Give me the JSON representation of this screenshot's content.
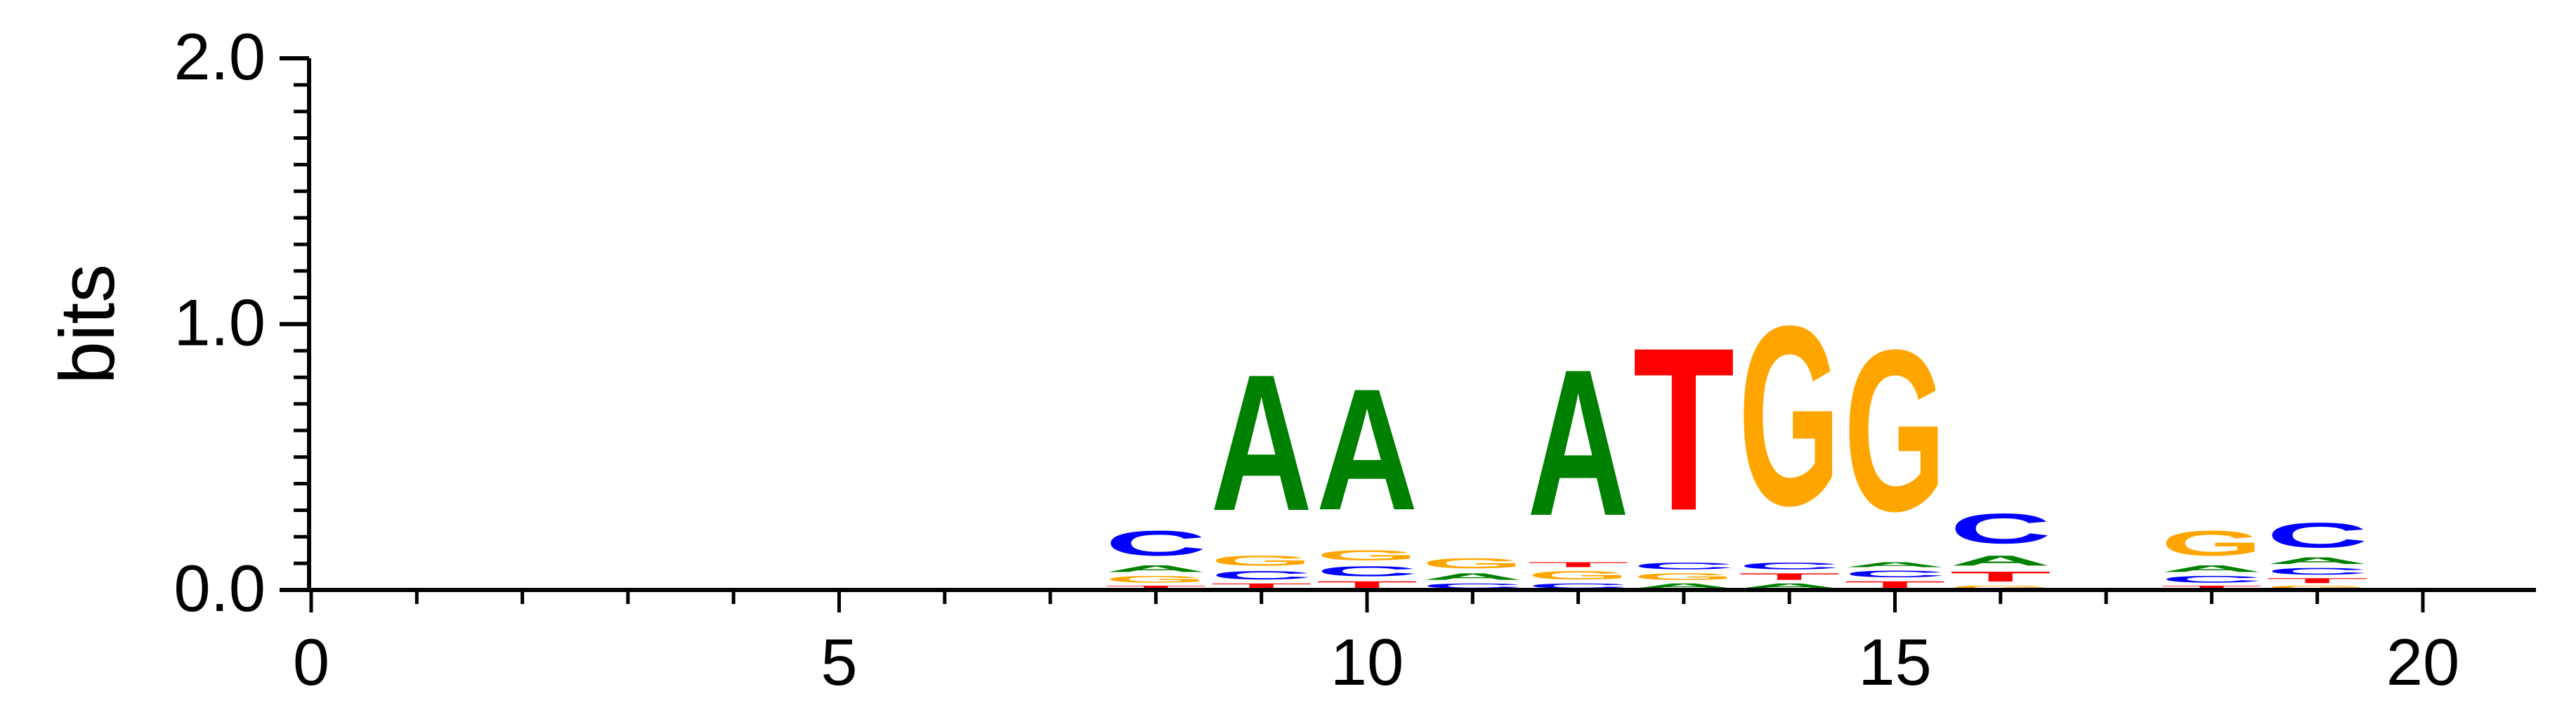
{
  "chart_data": {
    "type": "sequence-logo",
    "title": "",
    "xlabel": "",
    "ylabel": "bits",
    "ylim": [
      0,
      2
    ],
    "xlim": [
      -0.5,
      20.5
    ],
    "x_major_ticks": [
      0,
      5,
      10,
      15,
      20
    ],
    "x_tick_labels": [
      "0",
      "5",
      "10",
      "15",
      "20"
    ],
    "y_major_ticks": [
      0,
      1,
      2
    ],
    "y_tick_labels": [
      "0.0",
      "1.0",
      "2.0"
    ],
    "y_minor_step": 0.1,
    "colors": {
      "A": "#008000",
      "C": "#0000ff",
      "G": "#ffa500",
      "T": "#ff0000"
    },
    "positions": [
      {
        "pos": 8,
        "stack": [
          {
            "base": "T",
            "height": 0.02
          },
          {
            "base": "G",
            "height": 0.04
          },
          {
            "base": "A",
            "height": 0.04
          },
          {
            "base": "C",
            "height": 0.15
          }
        ]
      },
      {
        "pos": 9,
        "stack": [
          {
            "base": "T",
            "height": 0.03
          },
          {
            "base": "C",
            "height": 0.05
          },
          {
            "base": "G",
            "height": 0.06
          },
          {
            "base": "A",
            "height": 0.82
          }
        ]
      },
      {
        "pos": 10,
        "stack": [
          {
            "base": "T",
            "height": 0.04
          },
          {
            "base": "C",
            "height": 0.06
          },
          {
            "base": "G",
            "height": 0.06
          },
          {
            "base": "A",
            "height": 0.73
          }
        ]
      },
      {
        "pos": 11,
        "stack": [
          {
            "base": "C",
            "height": 0.03
          },
          {
            "base": "A",
            "height": 0.04
          },
          {
            "base": "G",
            "height": 0.06
          }
        ]
      },
      {
        "pos": 12,
        "stack": [
          {
            "base": "C",
            "height": 0.03
          },
          {
            "base": "G",
            "height": 0.05
          },
          {
            "base": "T",
            "height": 0.03
          },
          {
            "base": "A",
            "height": 0.88
          }
        ]
      },
      {
        "pos": 13,
        "stack": [
          {
            "base": "A",
            "height": 0.03
          },
          {
            "base": "G",
            "height": 0.04
          },
          {
            "base": "C",
            "height": 0.04
          },
          {
            "base": "T",
            "height": 0.98
          }
        ]
      },
      {
        "pos": 14,
        "stack": [
          {
            "base": "A",
            "height": 0.03
          },
          {
            "base": "T",
            "height": 0.04
          },
          {
            "base": "C",
            "height": 0.04
          },
          {
            "base": "G",
            "height": 1.08
          }
        ]
      },
      {
        "pos": 15,
        "stack": [
          {
            "base": "T",
            "height": 0.04
          },
          {
            "base": "C",
            "height": 0.04
          },
          {
            "base": "A",
            "height": 0.03
          },
          {
            "base": "G",
            "height": 0.97
          }
        ]
      },
      {
        "pos": 16,
        "stack": [
          {
            "base": "G",
            "height": 0.02
          },
          {
            "base": "T",
            "height": 0.06
          },
          {
            "base": "A",
            "height": 0.06
          },
          {
            "base": "C",
            "height": 0.18
          }
        ]
      },
      {
        "pos": 17,
        "stack": [
          {
            "base": "G",
            "height": 0.006
          }
        ]
      },
      {
        "pos": 18,
        "stack": [
          {
            "base": "T",
            "height": 0.02
          },
          {
            "base": "C",
            "height": 0.04
          },
          {
            "base": "A",
            "height": 0.04
          },
          {
            "base": "G",
            "height": 0.15
          }
        ]
      },
      {
        "pos": 19,
        "stack": [
          {
            "base": "G",
            "height": 0.02
          },
          {
            "base": "T",
            "height": 0.03
          },
          {
            "base": "C",
            "height": 0.04
          },
          {
            "base": "A",
            "height": 0.04
          },
          {
            "base": "C",
            "height": 0.15
          }
        ]
      }
    ]
  }
}
